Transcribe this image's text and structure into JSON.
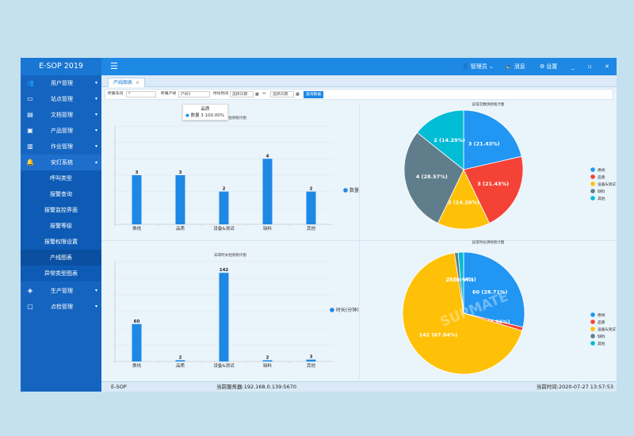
{
  "app": {
    "brand": "E-SOP 2019"
  },
  "topbar": {
    "menu_icon": "hamburger-icon",
    "user_label": "管理员",
    "messages_label": "消息",
    "settings_label": "设置",
    "window_buttons": [
      "_",
      "▫",
      "✕"
    ]
  },
  "sidebar": {
    "items": [
      {
        "label": "用户管理",
        "icon": "users-icon"
      },
      {
        "label": "站点管理",
        "icon": "monitor-icon"
      },
      {
        "label": "文档管理",
        "icon": "document-icon"
      },
      {
        "label": "产品管理",
        "icon": "product-icon"
      },
      {
        "label": "作业管理",
        "icon": "task-icon"
      },
      {
        "label": "安灯系统",
        "icon": "bell-icon"
      }
    ],
    "subitems": [
      "呼叫类型",
      "报警查询",
      "报警监控界面",
      "报警等级",
      "报警权限设置",
      "产线图表",
      "异常类型图表"
    ],
    "bottom_items": [
      {
        "label": "生产管理",
        "icon": "layers-icon"
      },
      {
        "label": "点检管理",
        "icon": "checklist-icon"
      }
    ]
  },
  "tabs": [
    {
      "label": "产线图表",
      "close": "×"
    }
  ],
  "filter": {
    "workshop_label": "所属车间",
    "workshop_value": "*",
    "line_label": "所属产线",
    "line_value": "产线1",
    "call_time_label": "呼叫时间",
    "start_placeholder": "选择日期",
    "separator": "↔",
    "end_placeholder": "选择日期",
    "query_button": "查询数据"
  },
  "charts": {
    "count_bar_title": "异常次数柱状统计图",
    "count_pie_title": "异常次数饼状统计图",
    "duration_bar_title": "异常时长柱状统计图",
    "duration_pie_title": "异常时长饼状统计图",
    "tooltip_title": "品质",
    "tooltip_value": "数量 3 100.00%",
    "pie_legend": [
      "换线",
      "品质",
      "设备&测试",
      "缺料",
      "其他"
    ],
    "colors": {
      "换线": "#2196f3",
      "品质": "#f44336",
      "设备&测试": "#ffc107",
      "缺料": "#607d8b",
      "其他": "#00bcd4"
    },
    "watermark": "SUPMATE"
  },
  "chart_data": [
    {
      "type": "bar",
      "title": "异常次数柱状统计图",
      "categories": [
        "换线",
        "品质",
        "设备&测试",
        "缺料",
        "其他"
      ],
      "series": [
        {
          "name": "数量",
          "values": [
            3,
            3,
            2,
            4,
            2
          ]
        }
      ],
      "legend_position": "right"
    },
    {
      "type": "pie",
      "title": "异常次数饼状统计图",
      "labels": [
        "换线",
        "品质",
        "设备&测试",
        "缺料",
        "其他"
      ],
      "values": [
        3,
        3,
        2,
        4,
        2
      ],
      "slice_labels": [
        "3 (21.43%)",
        "3 (21.43%)",
        "2 (14.29%)",
        "4 (28.57%)",
        "2 (14.29%)"
      ],
      "legend_position": "right"
    },
    {
      "type": "bar",
      "title": "异常时长柱状统计图",
      "categories": [
        "换线",
        "品质",
        "设备&测试",
        "缺料",
        "其他"
      ],
      "series": [
        {
          "name": "时长(分钟)",
          "values": [
            60,
            2,
            142,
            2,
            3
          ]
        }
      ],
      "legend_position": "right"
    },
    {
      "type": "pie",
      "title": "异常时长饼状统计图",
      "labels": [
        "换线",
        "品质",
        "设备&测试",
        "缺料",
        "其他"
      ],
      "values": [
        60,
        2,
        142,
        2,
        3
      ],
      "slice_labels": [
        "60 (28.71%)",
        "2 (0.96%)",
        "142 (67.94%)",
        "2 (0.96%)",
        "3 (1.44%)"
      ],
      "legend_position": "right"
    }
  ],
  "footer": {
    "app_name": "E-SOP",
    "server": "当前服务器:192.168.0.139:5670",
    "time": "当前时间:2020-07-27 13:57:53"
  }
}
